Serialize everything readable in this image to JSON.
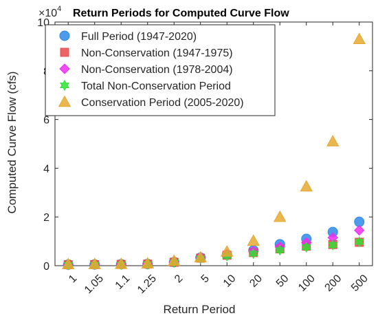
{
  "chart_data": {
    "type": "scatter",
    "title": "Return Periods for Computed Curve Flow",
    "xlabel": "Return Period",
    "ylabel": "Computed Curve Flow (cfs)",
    "y_multiplier_label": "×10",
    "y_multiplier_exponent": "4",
    "categories": [
      "1",
      "1.05",
      "1.1",
      "1.25",
      "2",
      "5",
      "10",
      "20",
      "50",
      "100",
      "200",
      "500"
    ],
    "ylim": [
      0,
      100000
    ],
    "yticks": [
      0,
      20000,
      40000,
      60000,
      80000,
      100000
    ],
    "ytick_labels": [
      "0",
      "2",
      "4",
      "6",
      "8",
      "10"
    ],
    "grid": false,
    "legend_position": "top-left",
    "series": [
      {
        "name": "Full Period (1947-2020)",
        "marker": "circle",
        "color": "#2e8ae6",
        "values": [
          450,
          500,
          600,
          700,
          1500,
          3300,
          4500,
          6300,
          8800,
          11000,
          13800,
          18000
        ]
      },
      {
        "name": "Non-Conservation (1947-1975)",
        "marker": "square",
        "color": "#e8494b",
        "values": [
          400,
          450,
          550,
          650,
          1400,
          3100,
          4300,
          5400,
          6900,
          8000,
          8700,
          9600
        ]
      },
      {
        "name": "Non-Conservation (1978-2004)",
        "marker": "diamond",
        "color": "#ec2ef0",
        "values": [
          500,
          550,
          650,
          750,
          1600,
          3500,
          4700,
          6000,
          7700,
          9500,
          11500,
          14500
        ]
      },
      {
        "name": "Total Non-Conservation Period",
        "marker": "hexagram",
        "color": "#2ee032",
        "values": [
          350,
          400,
          500,
          600,
          1300,
          3000,
          4000,
          5000,
          6400,
          7600,
          8500,
          9800
        ]
      },
      {
        "name": "Conservation Period (2005-2020)",
        "marker": "triangle",
        "color": "#e5a931",
        "values": [
          600,
          650,
          700,
          900,
          2000,
          3400,
          5800,
          10200,
          20000,
          32500,
          51000,
          93000
        ]
      }
    ]
  }
}
